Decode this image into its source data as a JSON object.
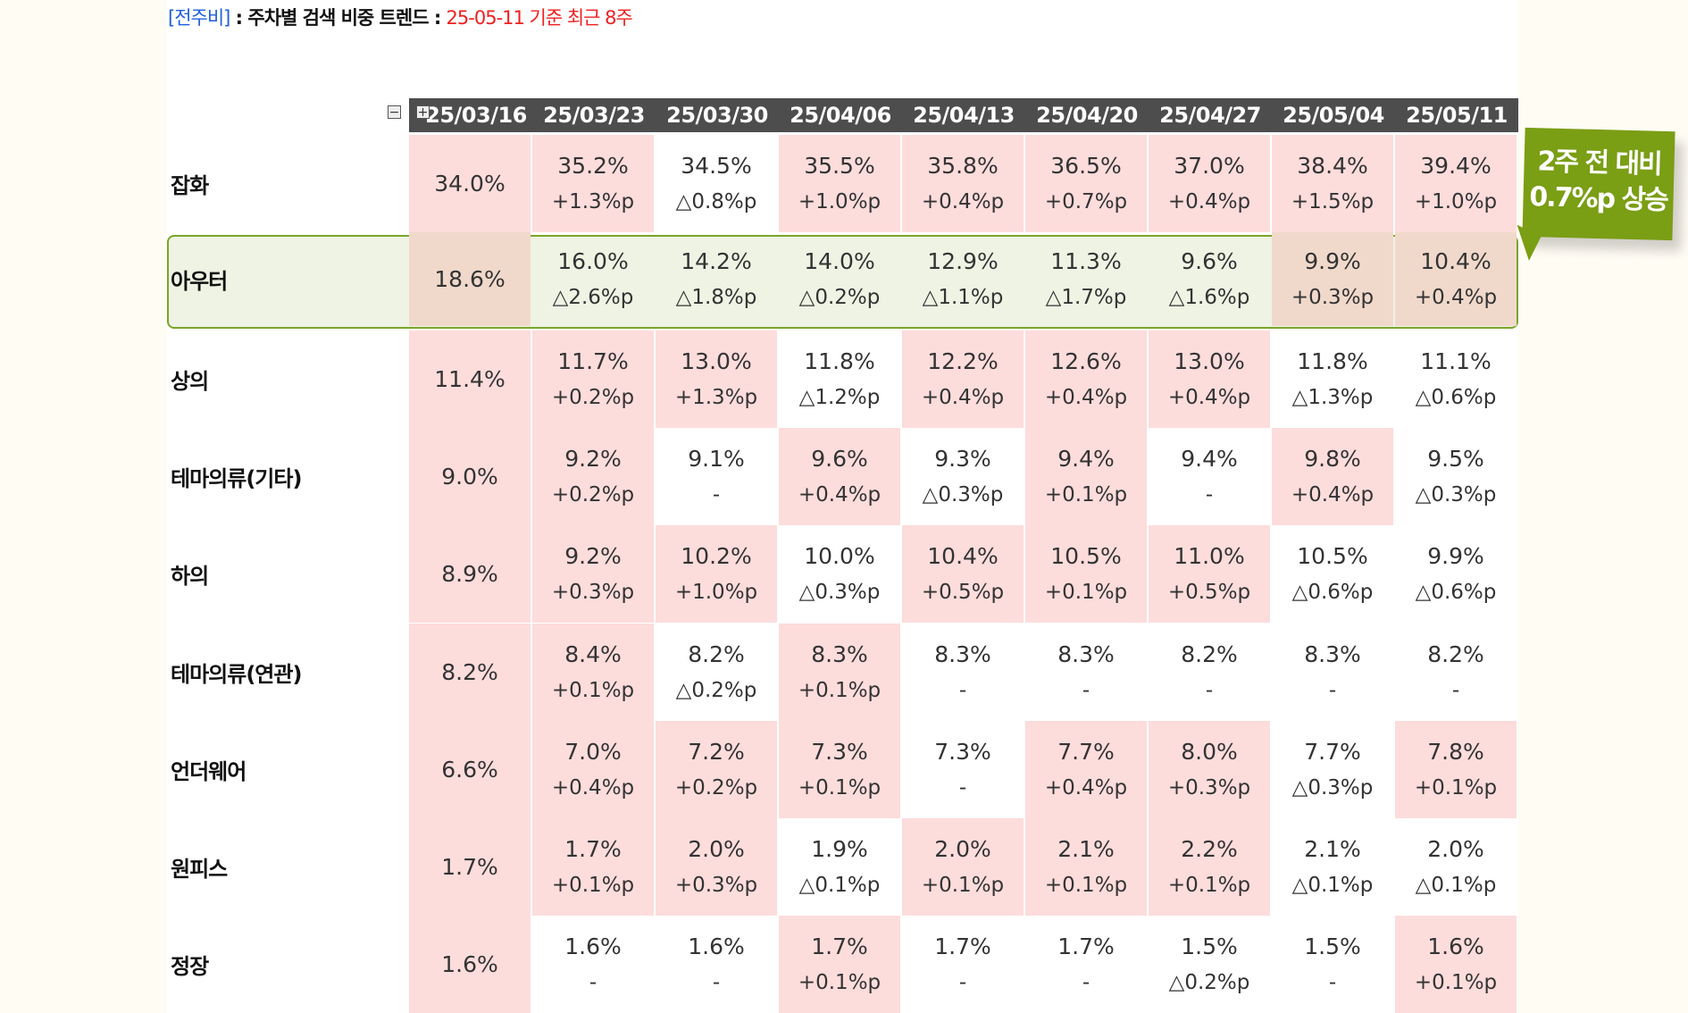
{
  "title": {
    "tag": "[전주비]",
    "main": " : 주차별 검색 비중 트렌드 : ",
    "sub": "25-05-11 기준 최근 8주"
  },
  "controls": {
    "collapse": "−",
    "expand": "+"
  },
  "columns": [
    "25/03/16",
    "25/03/23",
    "25/03/30",
    "25/04/06",
    "25/04/13",
    "25/04/20",
    "25/04/27",
    "25/05/04",
    "25/05/11"
  ],
  "rows": [
    {
      "label": "잡화",
      "values": [
        "34.0%",
        "35.2%",
        "34.5%",
        "35.5%",
        "35.8%",
        "36.5%",
        "37.0%",
        "38.4%",
        "39.4%"
      ],
      "changes": [
        "",
        "+1.3%p",
        "△0.8%p",
        "+1.0%p",
        "+0.4%p",
        "+0.7%p",
        "+0.4%p",
        "+1.5%p",
        "+1.0%p"
      ]
    },
    {
      "label": "아우터",
      "highlight": true,
      "values": [
        "18.6%",
        "16.0%",
        "14.2%",
        "14.0%",
        "12.9%",
        "11.3%",
        "9.6%",
        "9.9%",
        "10.4%"
      ],
      "changes": [
        "",
        "△2.6%p",
        "△1.8%p",
        "△0.2%p",
        "△1.1%p",
        "△1.7%p",
        "△1.6%p",
        "+0.3%p",
        "+0.4%p"
      ]
    },
    {
      "label": "상의",
      "values": [
        "11.4%",
        "11.7%",
        "13.0%",
        "11.8%",
        "12.2%",
        "12.6%",
        "13.0%",
        "11.8%",
        "11.1%"
      ],
      "changes": [
        "",
        "+0.2%p",
        "+1.3%p",
        "△1.2%p",
        "+0.4%p",
        "+0.4%p",
        "+0.4%p",
        "△1.3%p",
        "△0.6%p"
      ]
    },
    {
      "label": "테마의류(기타)",
      "values": [
        "9.0%",
        "9.2%",
        "9.1%",
        "9.6%",
        "9.3%",
        "9.4%",
        "9.4%",
        "9.8%",
        "9.5%"
      ],
      "changes": [
        "",
        "+0.2%p",
        "-",
        "+0.4%p",
        "△0.3%p",
        "+0.1%p",
        "-",
        "+0.4%p",
        "△0.3%p"
      ]
    },
    {
      "label": "하의",
      "values": [
        "8.9%",
        "9.2%",
        "10.2%",
        "10.0%",
        "10.4%",
        "10.5%",
        "11.0%",
        "10.5%",
        "9.9%"
      ],
      "changes": [
        "",
        "+0.3%p",
        "+1.0%p",
        "△0.3%p",
        "+0.5%p",
        "+0.1%p",
        "+0.5%p",
        "△0.6%p",
        "△0.6%p"
      ]
    },
    {
      "label": "테마의류(연관)",
      "values": [
        "8.2%",
        "8.4%",
        "8.2%",
        "8.3%",
        "8.3%",
        "8.3%",
        "8.2%",
        "8.3%",
        "8.2%"
      ],
      "changes": [
        "",
        "+0.1%p",
        "△0.2%p",
        "+0.1%p",
        "-",
        "-",
        "-",
        "-",
        "-"
      ]
    },
    {
      "label": "언더웨어",
      "values": [
        "6.6%",
        "7.0%",
        "7.2%",
        "7.3%",
        "7.3%",
        "7.7%",
        "8.0%",
        "7.7%",
        "7.8%"
      ],
      "changes": [
        "",
        "+0.4%p",
        "+0.2%p",
        "+0.1%p",
        "-",
        "+0.4%p",
        "+0.3%p",
        "△0.3%p",
        "+0.1%p"
      ]
    },
    {
      "label": "원피스",
      "values": [
        "1.7%",
        "1.7%",
        "2.0%",
        "1.9%",
        "2.0%",
        "2.1%",
        "2.2%",
        "2.1%",
        "2.0%"
      ],
      "changes": [
        "",
        "+0.1%p",
        "+0.3%p",
        "△0.1%p",
        "+0.1%p",
        "+0.1%p",
        "+0.1%p",
        "△0.1%p",
        "△0.1%p"
      ]
    },
    {
      "label": "정장",
      "values": [
        "1.6%",
        "1.6%",
        "1.6%",
        "1.7%",
        "1.7%",
        "1.7%",
        "1.5%",
        "1.5%",
        "1.6%"
      ],
      "changes": [
        "",
        "-",
        "-",
        "+0.1%p",
        "-",
        "-",
        "△0.2%p",
        "-",
        "+0.1%p"
      ]
    }
  ],
  "pinkOverride": [
    [
      0,
      2
    ],
    [
      3,
      7
    ],
    [
      4,
      6
    ],
    [
      5,
      4
    ],
    [
      5,
      7
    ]
  ],
  "callout": {
    "line1": "2주 전 대비",
    "line2": "0.7%p 상승"
  },
  "colors": {
    "up": "#fddcdc",
    "highlight": "#eef3e4",
    "accent": "#7a9e14"
  }
}
